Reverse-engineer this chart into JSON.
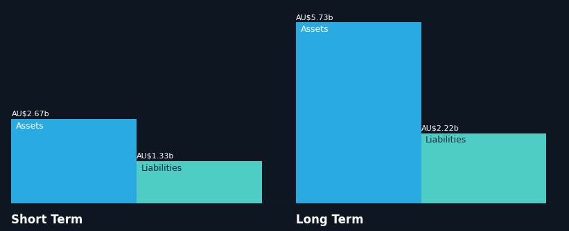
{
  "background_color": "#0e1621",
  "short_term": {
    "assets_value": 2.67,
    "liabilities_value": 1.33,
    "assets_label": "AU$2.67b",
    "liabilities_label": "AU$1.33b",
    "assets_color": "#29aae1",
    "liabilities_color": "#4ecdc4",
    "group_label": "Short Term"
  },
  "long_term": {
    "assets_value": 5.73,
    "liabilities_value": 2.22,
    "assets_label": "AU$5.73b",
    "liabilities_label": "AU$2.22b",
    "assets_color": "#29aae1",
    "liabilities_color": "#4ecdc4",
    "group_label": "Long Term"
  },
  "max_value": 6.0,
  "text_color": "#ffffff",
  "liabilities_label_color": "#1a2b3c",
  "inner_label_fontsize": 9,
  "value_label_fontsize": 8,
  "group_label_fontsize": 12,
  "baseline_color": "#3a4a5a"
}
